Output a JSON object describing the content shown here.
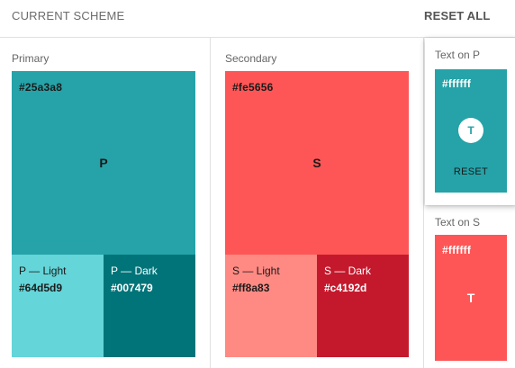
{
  "header": {
    "title": "CURRENT SCHEME",
    "reset_all": "RESET ALL"
  },
  "primary": {
    "label": "Primary",
    "hex": "#25a3a8",
    "letter": "P",
    "color": "#25a3a8",
    "light": {
      "name": "P — Light",
      "hex": "#64d5d9",
      "color": "#64d5d9"
    },
    "dark": {
      "name": "P — Dark",
      "hex": "#007479",
      "color": "#007479"
    }
  },
  "secondary": {
    "label": "Secondary",
    "hex": "#fe5656",
    "letter": "S",
    "color": "#fe5656",
    "light": {
      "name": "S — Light",
      "hex": "#ff8a83",
      "color": "#ff8a83"
    },
    "dark": {
      "name": "S — Dark",
      "hex": "#c4192d",
      "color": "#c4192d"
    }
  },
  "text_on_primary": {
    "label": "Text on P",
    "hex": "#ffffff",
    "letter": "T",
    "reset": "RESET"
  },
  "text_on_secondary": {
    "label": "Text on S",
    "hex": "#ffffff",
    "letter": "T"
  }
}
